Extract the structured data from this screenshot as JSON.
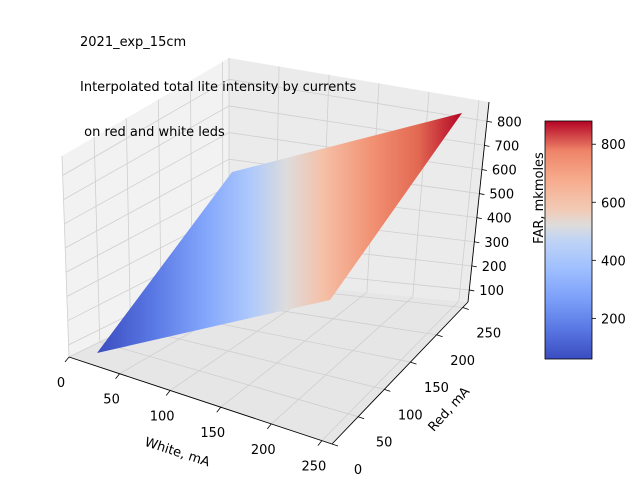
{
  "chart_data": {
    "type": "surface3d",
    "title_lines": [
      "2021_exp_15cm",
      "Interpolated total lite intensity by currents",
      " on red and white leds"
    ],
    "xlabel": "White, mA",
    "ylabel": "Red, mA",
    "zlabel": "FAR, mkmoles",
    "xlim": [
      0,
      260
    ],
    "ylim": [
      0,
      260
    ],
    "zlim": [
      50,
      880
    ],
    "x_ticks": [
      0,
      50,
      100,
      150,
      200,
      250
    ],
    "y_ticks": [
      0,
      50,
      100,
      150,
      200,
      250
    ],
    "z_ticks": [
      100,
      200,
      300,
      400,
      500,
      600,
      700,
      800
    ],
    "surface": {
      "x": [
        0,
        260
      ],
      "y": [
        0,
        260
      ],
      "z": [
        [
          60,
          470
        ],
        [
          470,
          880
        ]
      ]
    },
    "colorbar": {
      "colormap": "coolwarm",
      "min": 60,
      "max": 880,
      "ticks": [
        200,
        400,
        600,
        800
      ]
    },
    "colors": {
      "cold": "#3b4cc0",
      "mid": "#dddddd",
      "warm": "#b40426",
      "pane": "#f2f2f2",
      "grid": "#cccccc"
    }
  }
}
